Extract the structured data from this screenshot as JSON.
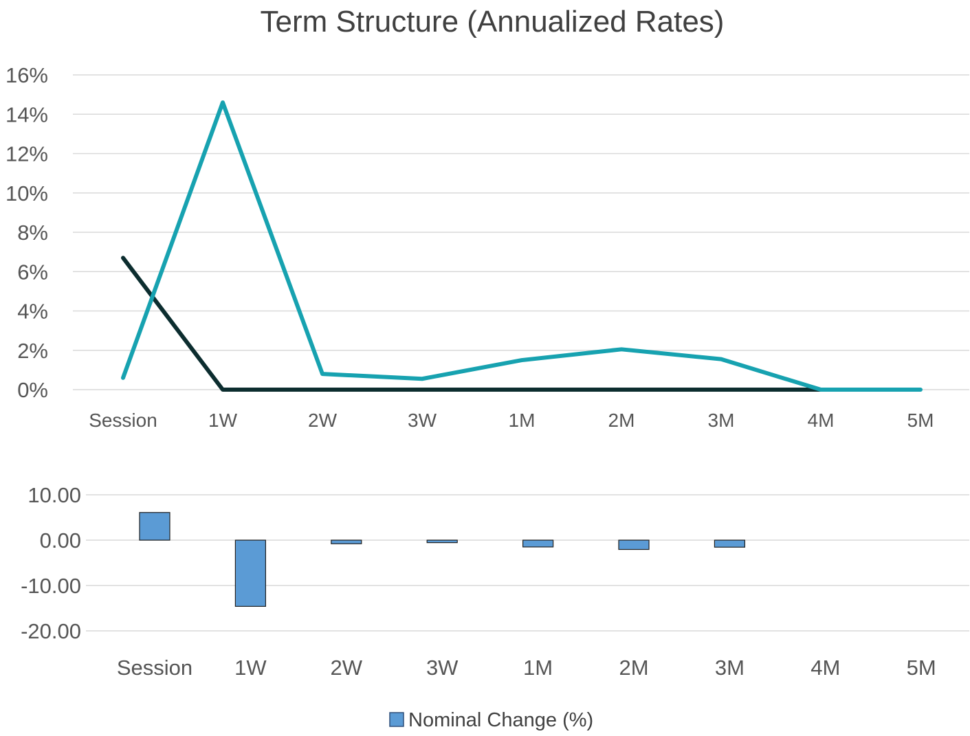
{
  "chart_data": [
    {
      "type": "line",
      "title": "Term Structure (Annualized Rates)",
      "categories": [
        "Session",
        "1W",
        "2W",
        "3W",
        "1M",
        "2M",
        "3M",
        "4M",
        "5M"
      ],
      "y_tick_labels": [
        "0%",
        "2%",
        "4%",
        "6%",
        "8%",
        "10%",
        "12%",
        "14%",
        "16%"
      ],
      "ylim": [
        0,
        16
      ],
      "grid": true,
      "series": [
        {
          "color": "#17a2b0",
          "values": [
            0.6,
            14.6,
            0.8,
            0.55,
            1.5,
            2.05,
            1.55,
            0,
            0
          ]
        },
        {
          "color": "#0c2d2f",
          "values": [
            6.7,
            0,
            0,
            0,
            0,
            0,
            0,
            0,
            null
          ]
        }
      ]
    },
    {
      "type": "bar",
      "categories": [
        "Session",
        "1W",
        "2W",
        "3W",
        "1M",
        "2M",
        "3M",
        "4M",
        "5M"
      ],
      "y_tick_labels": [
        "10.00",
        "0.00",
        "-10.00",
        "-20.00"
      ],
      "ylim": [
        -20,
        10
      ],
      "grid": true,
      "legend": "bottom",
      "series": [
        {
          "name": "Nominal Change (%)",
          "color": "#5b9bd5",
          "values": [
            6.1,
            -14.6,
            -0.8,
            -0.55,
            -1.5,
            -2.05,
            -1.55,
            0,
            0
          ]
        }
      ]
    }
  ]
}
